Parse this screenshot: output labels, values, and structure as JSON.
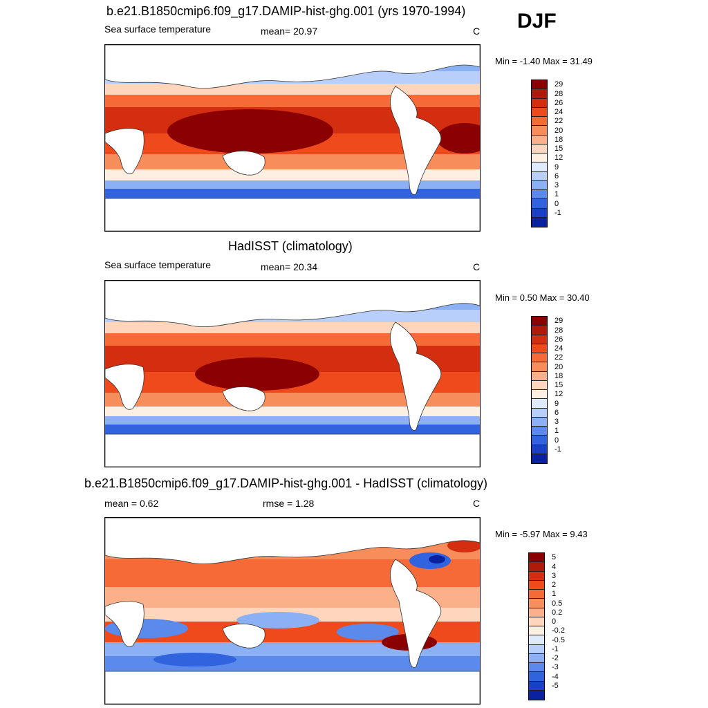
{
  "season": "DJF",
  "panels": [
    {
      "title": "b.e21.B1850cmip6.f09_g17.DAMIP-hist-ghg.001 (yrs 1970-1994)",
      "left_label": "Sea surface temperature",
      "center_label": "mean=  20.97",
      "units": "C",
      "minmax": "Min =  -1.40 Max =  31.49",
      "colorbar_levels": [
        "29",
        "28",
        "26",
        "24",
        "22",
        "20",
        "18",
        "15",
        "12",
        "9",
        "6",
        "3",
        "1",
        "0",
        "-1"
      ],
      "colorbar_colors": [
        "#8b0000",
        "#b01a0a",
        "#d42e10",
        "#ee4a1c",
        "#f56a36",
        "#f88d5c",
        "#fbb08a",
        "#fdd6bd",
        "#fdf0e2",
        "#dfeafd",
        "#b7cffa",
        "#8bb0f4",
        "#5a8aeb",
        "#3263df",
        "#1a40c8",
        "#0a22a0"
      ]
    },
    {
      "title": "HadISST (climatology)",
      "left_label": "Sea surface temperature",
      "center_label": "mean=  20.34",
      "units": "C",
      "minmax": "Min =   0.50 Max =  30.40",
      "colorbar_levels": [
        "29",
        "28",
        "26",
        "24",
        "22",
        "20",
        "18",
        "15",
        "12",
        "9",
        "6",
        "3",
        "1",
        "0",
        "-1"
      ],
      "colorbar_colors": [
        "#8b0000",
        "#b01a0a",
        "#d42e10",
        "#ee4a1c",
        "#f56a36",
        "#f88d5c",
        "#fbb08a",
        "#fdd6bd",
        "#fdf0e2",
        "#dfeafd",
        "#b7cffa",
        "#8bb0f4",
        "#5a8aeb",
        "#3263df",
        "#1a40c8",
        "#0a22a0"
      ]
    },
    {
      "title": "b.e21.B1850cmip6.f09_g17.DAMIP-hist-ghg.001 - HadISST (climatology)",
      "left_label": "mean =   0.62",
      "center_label": "rmse =   1.28",
      "units": "C",
      "minmax": "Min =  -5.97 Max =   9.43",
      "colorbar_levels": [
        "5",
        "4",
        "3",
        "2",
        "1",
        "0.5",
        "0.2",
        "0",
        "-0.2",
        "-0.5",
        "-1",
        "-2",
        "-3",
        "-4",
        "-5"
      ],
      "colorbar_colors": [
        "#8b0000",
        "#b01a0a",
        "#d42e10",
        "#ee4a1c",
        "#f56a36",
        "#f88d5c",
        "#fbb08a",
        "#fdd6bd",
        "#fdf0e2",
        "#dfeafd",
        "#b7cffa",
        "#8bb0f4",
        "#5a8aeb",
        "#3263df",
        "#1a40c8",
        "#0a22a0"
      ]
    }
  ]
}
